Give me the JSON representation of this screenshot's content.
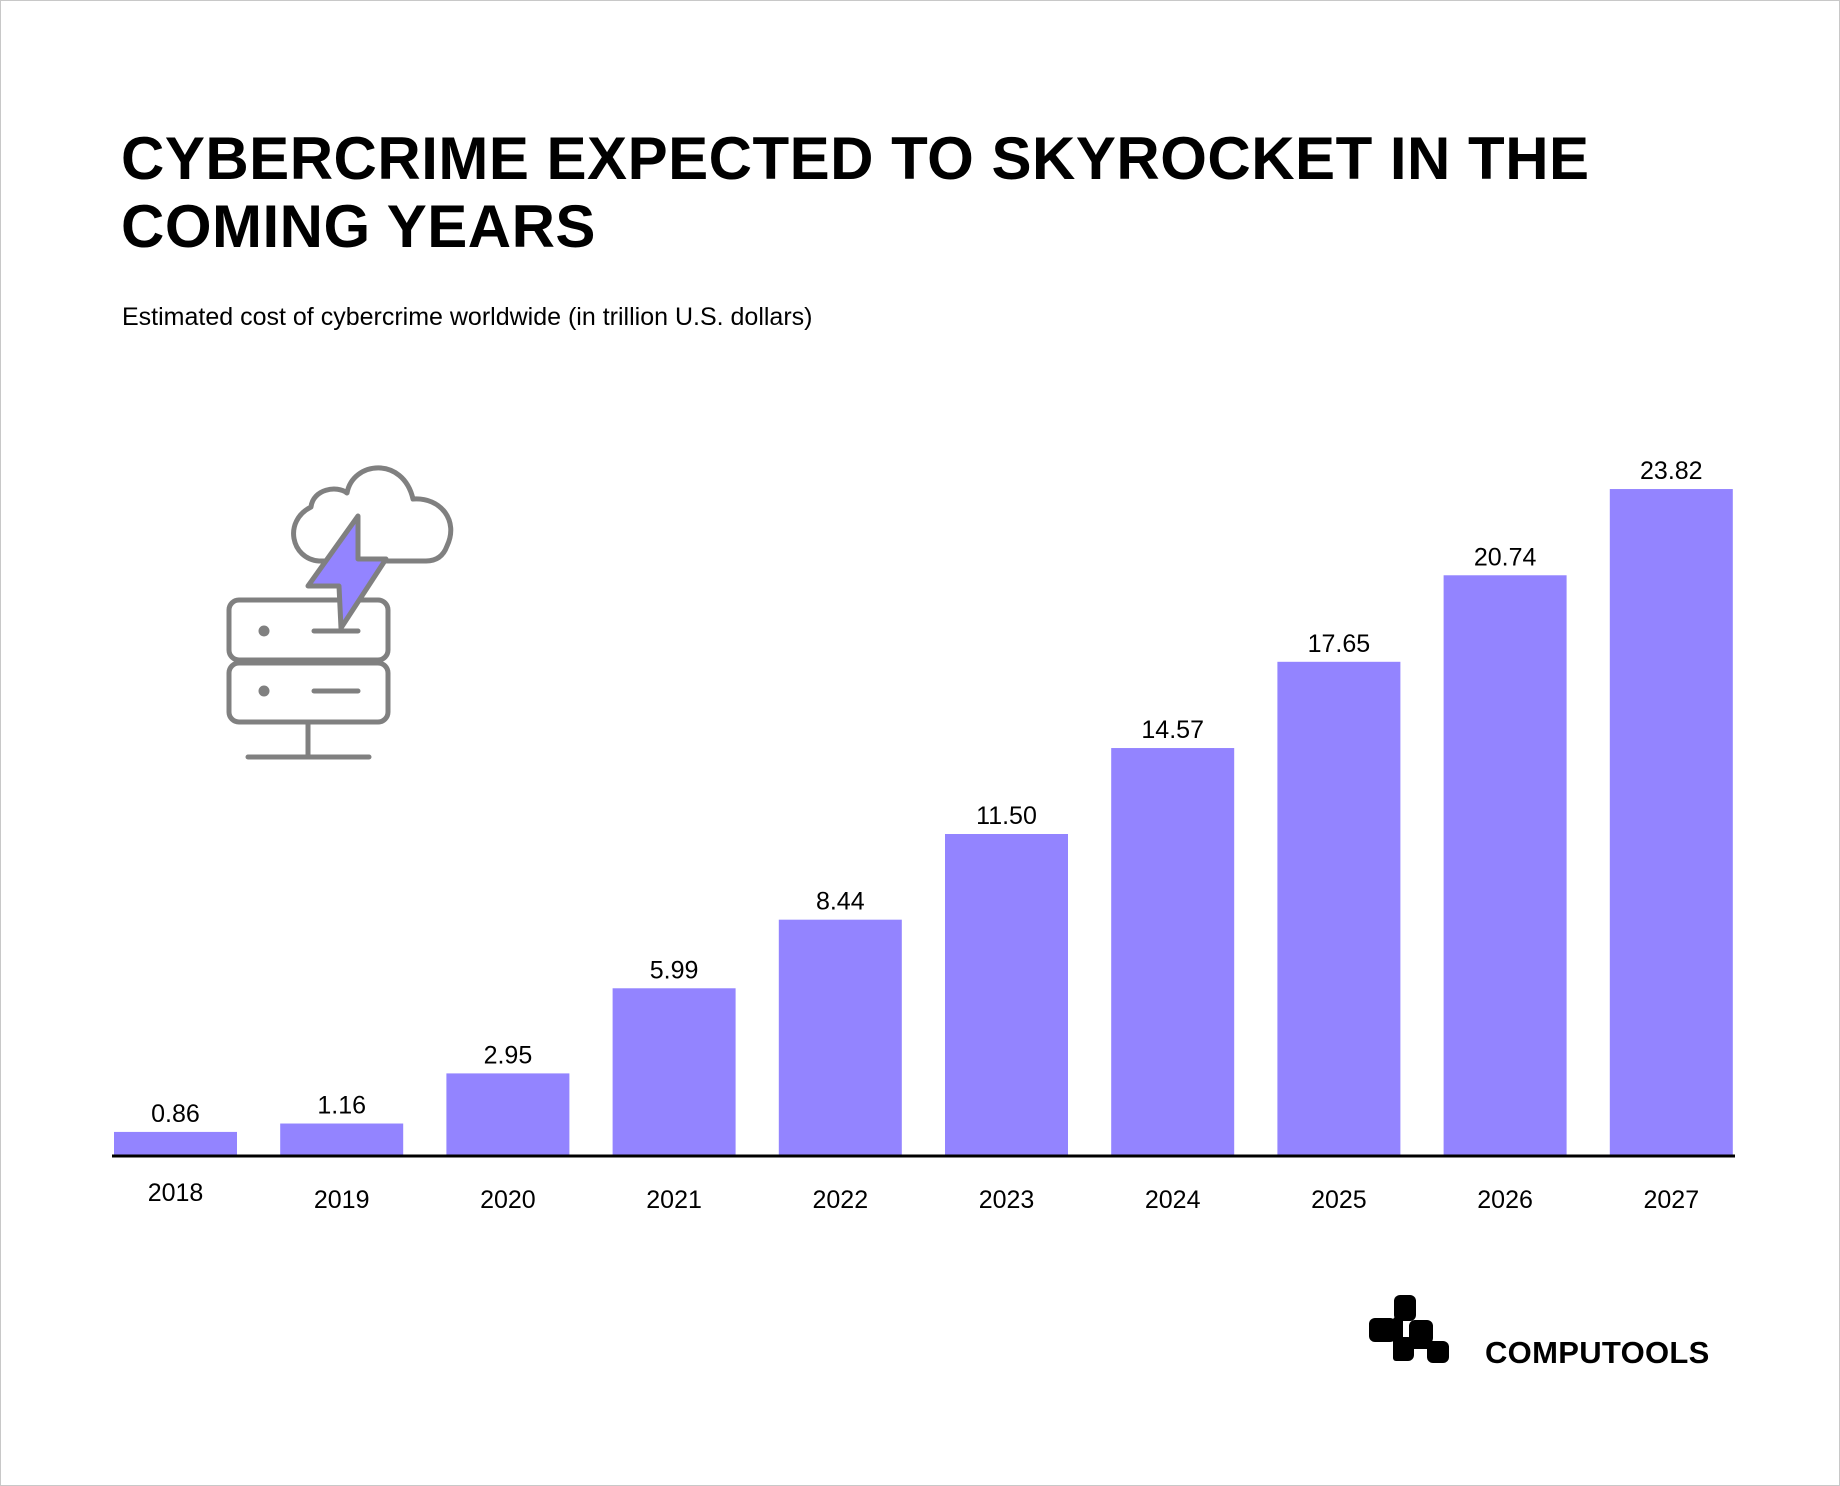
{
  "chart_data": {
    "type": "bar",
    "title": "CYBERCRIME EXPECTED TO SKYROCKET IN THE COMING YEARS",
    "subtitle": "Estimated cost of cybercrime worldwide (in trillion U.S. dollars)",
    "xlabel": "",
    "ylabel": "",
    "categories": [
      "2018",
      "2019",
      "2020",
      "2021",
      "2022",
      "2023",
      "2024",
      "2025",
      "2026",
      "2027"
    ],
    "values": [
      0.86,
      1.16,
      2.95,
      5.99,
      8.44,
      11.5,
      14.57,
      17.65,
      20.74,
      23.82
    ],
    "data_labels": [
      "0.86",
      "1.16",
      "2.95",
      "5.99",
      "8.44",
      "11.50",
      "14.57",
      "17.65",
      "20.74",
      "23.82"
    ],
    "ylim": [
      0,
      24
    ],
    "grid": false,
    "legend": "none",
    "bar_color": "#9384FF"
  },
  "icon": {
    "name": "cloud-lightning-server-icon",
    "stroke": "#808080",
    "accent": "#9384FF"
  },
  "brand": {
    "name": "COMPUTOOLS"
  }
}
